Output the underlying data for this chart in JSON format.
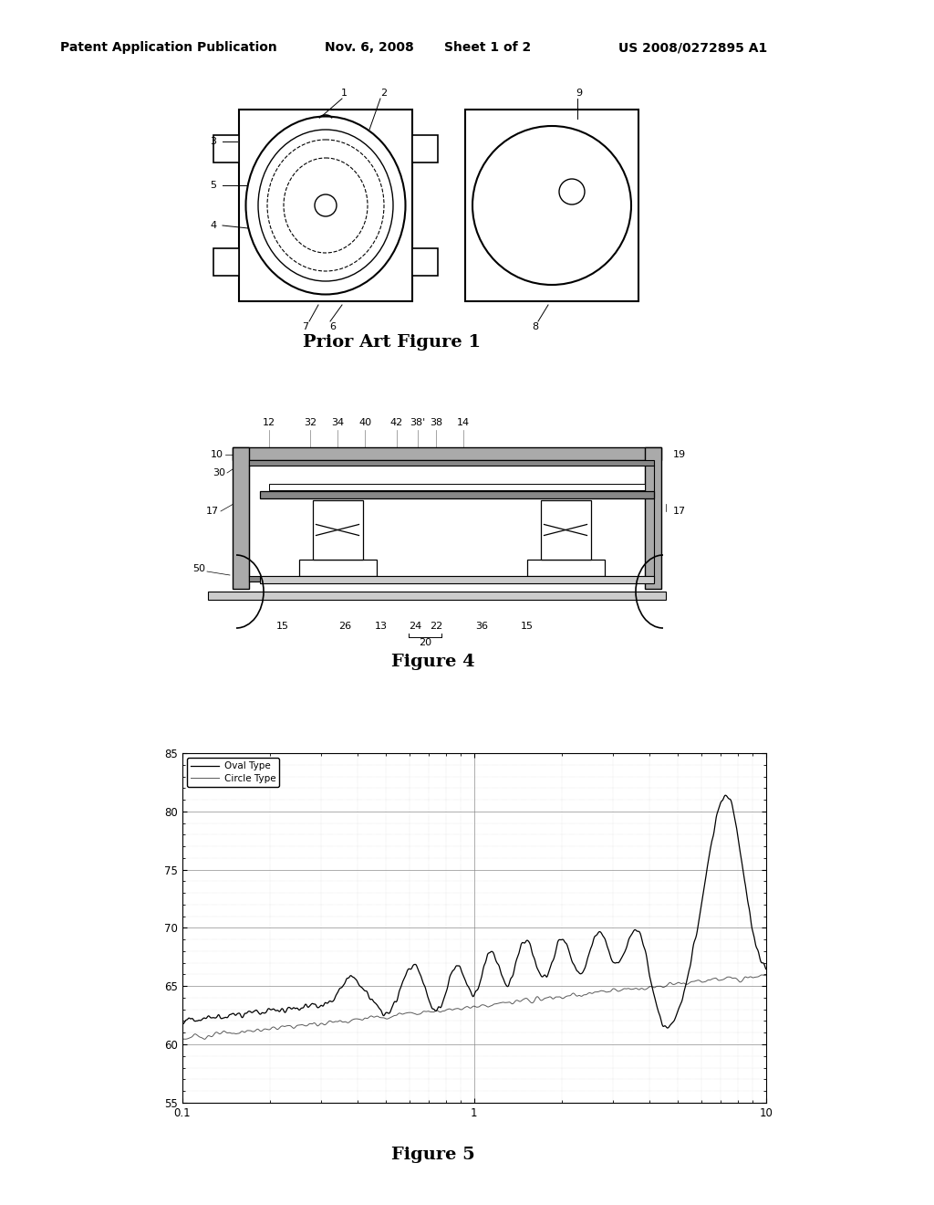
{
  "bg_color": "#ffffff",
  "header_text": "Patent Application Publication",
  "header_date": "Nov. 6, 2008",
  "header_sheet": "Sheet 1 of 2",
  "header_patent": "US 2008/0272895 A1",
  "fig1_title": "Prior Art Figure 1",
  "fig4_title": "Figure 4",
  "fig5_title": "Figure 5",
  "legend_oval": "Oval Type",
  "legend_circle": "Circle Type"
}
